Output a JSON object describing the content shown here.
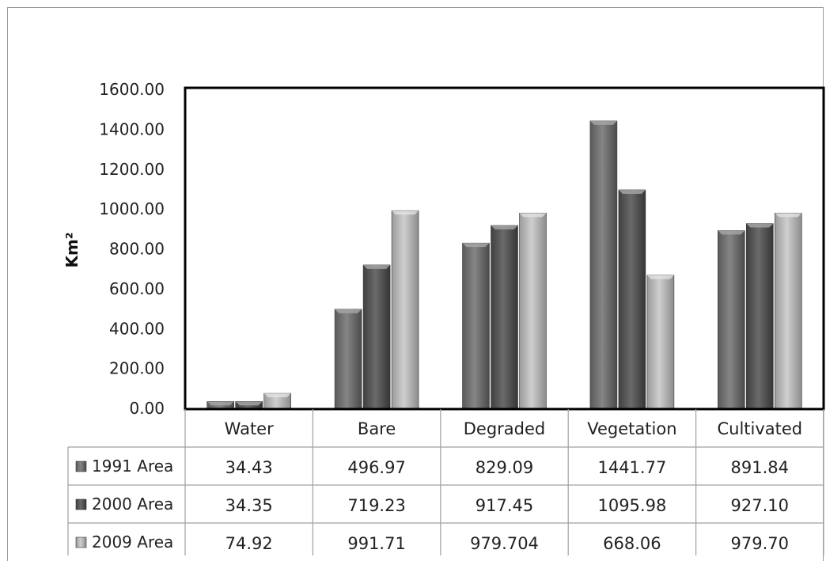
{
  "chart_data": {
    "type": "bar",
    "title": "",
    "xlabel": "",
    "ylabel": "Km²",
    "ylim": [
      0,
      1600
    ],
    "yticks": [
      "0.00",
      "200.00",
      "400.00",
      "600.00",
      "800.00",
      "1000.00",
      "1200.00",
      "1400.00",
      "1600.00"
    ],
    "categories": [
      "Water",
      "Bare",
      "Degraded",
      "Vegetation",
      "Cultivated"
    ],
    "series": [
      {
        "name": "1991 Area",
        "values": [
          34.43,
          496.97,
          829.09,
          1441.77,
          891.84
        ],
        "labels": [
          "34.43",
          "496.97",
          "829.09",
          "1441.77",
          "891.84"
        ],
        "color": "#6e6e6e"
      },
      {
        "name": "2000 Area",
        "values": [
          34.35,
          719.23,
          917.45,
          1095.98,
          927.1
        ],
        "labels": [
          "34.35",
          "719.23",
          "917.45",
          "1095.98",
          "927.10"
        ],
        "color": "#575757"
      },
      {
        "name": "2009 Area",
        "values": [
          74.92,
          991.71,
          979.704,
          668.06,
          979.7
        ],
        "labels": [
          "74.92",
          "991.71",
          "979.704",
          "668.06",
          "979.70"
        ],
        "color": "#b2b2b2"
      }
    ],
    "data_table": true,
    "grid": false,
    "legend": "data-table-left"
  }
}
